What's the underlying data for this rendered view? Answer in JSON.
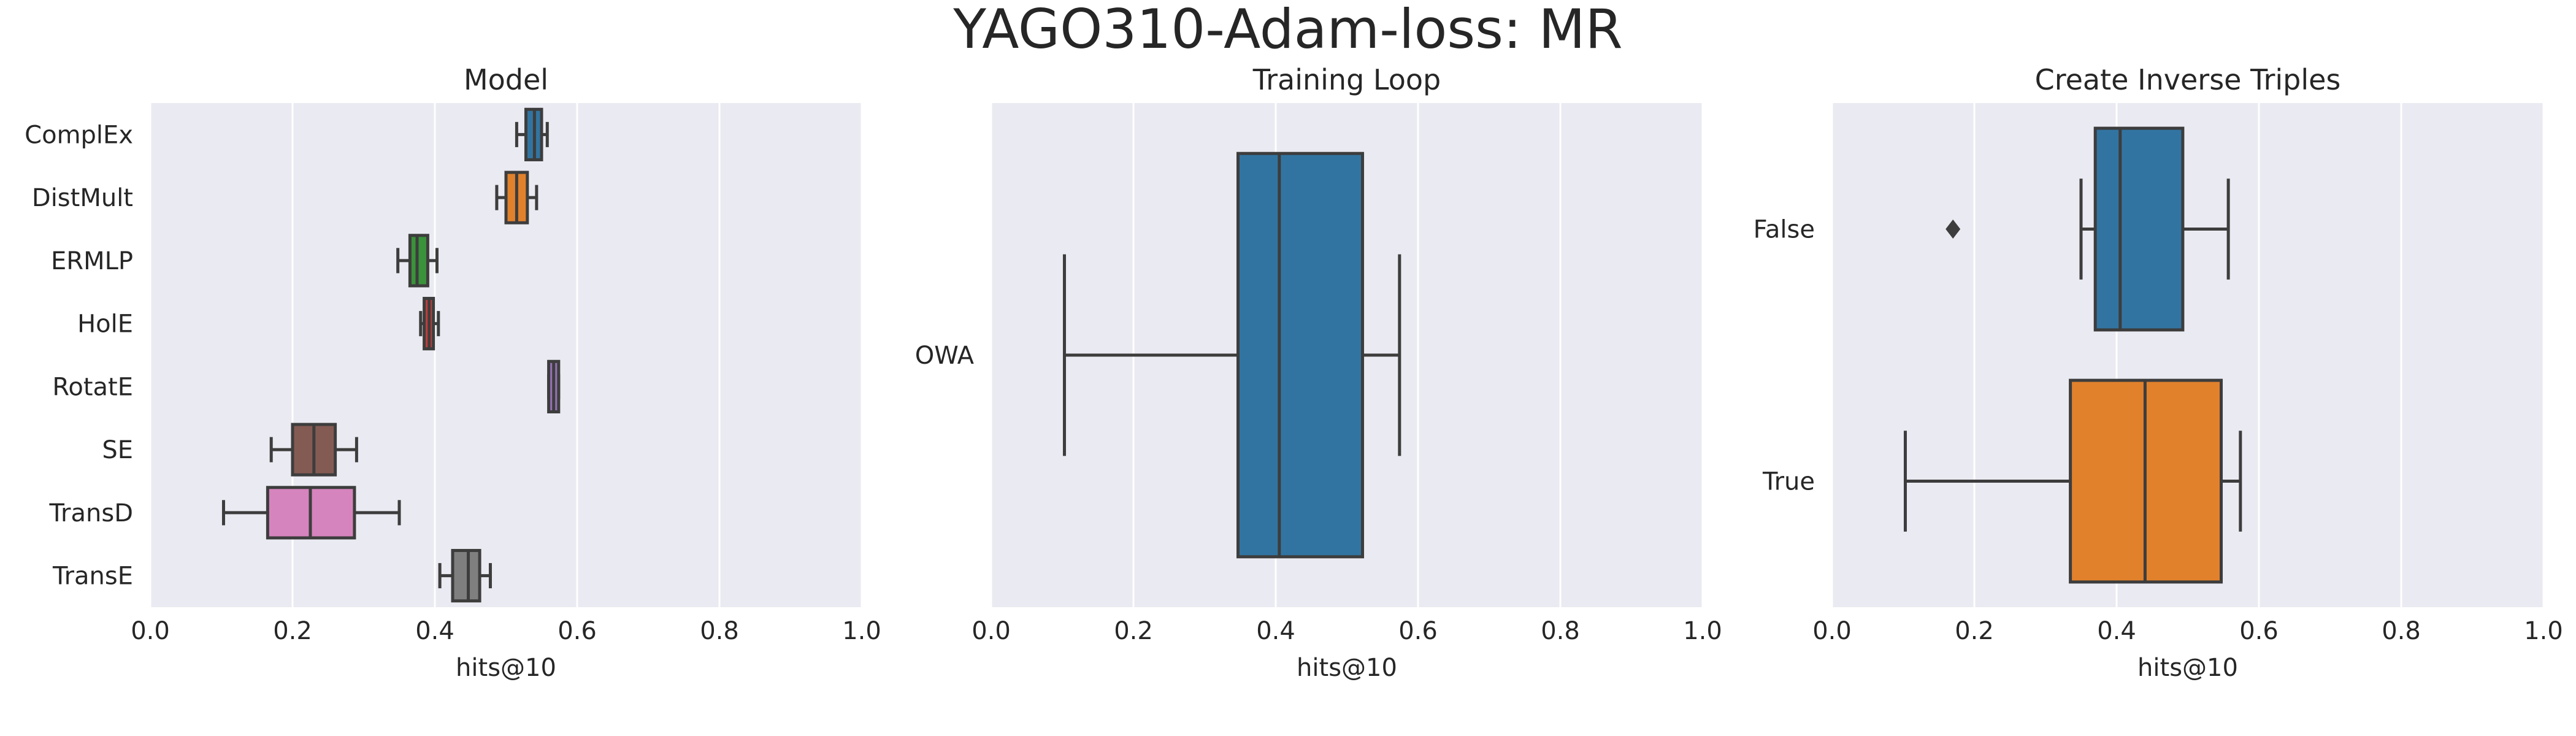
{
  "figure": {
    "title": "YAGO310-Adam-loss: MR"
  },
  "chart_data": [
    {
      "type": "box",
      "orientation": "horizontal",
      "title": "Model",
      "xlabel": "hits@10",
      "ylabel": "",
      "xlim": [
        0.0,
        1.0
      ],
      "xticks": [
        "0.0",
        "0.2",
        "0.4",
        "0.6",
        "0.8",
        "1.0"
      ],
      "grid": true,
      "categories": [
        "ComplEx",
        "DistMult",
        "ERMLP",
        "HolE",
        "RotatE",
        "SE",
        "TransD",
        "TransE"
      ],
      "boxes": [
        {
          "category": "ComplEx",
          "whislo": 0.515,
          "q1": 0.528,
          "median": 0.54,
          "q3": 0.55,
          "whishi": 0.558,
          "fliers": [],
          "color": "#3274a1"
        },
        {
          "category": "DistMult",
          "whislo": 0.487,
          "q1": 0.5,
          "median": 0.515,
          "q3": 0.53,
          "whishi": 0.543,
          "fliers": [],
          "color": "#e1812c"
        },
        {
          "category": "ERMLP",
          "whislo": 0.348,
          "q1": 0.365,
          "median": 0.375,
          "q3": 0.39,
          "whishi": 0.403,
          "fliers": [],
          "color": "#3a923a"
        },
        {
          "category": "HolE",
          "whislo": 0.38,
          "q1": 0.385,
          "median": 0.392,
          "q3": 0.398,
          "whishi": 0.405,
          "fliers": [],
          "color": "#c03d3e"
        },
        {
          "category": "RotatE",
          "whislo": 0.56,
          "q1": 0.56,
          "median": 0.567,
          "q3": 0.574,
          "whishi": 0.574,
          "fliers": [],
          "color": "#9372b2"
        },
        {
          "category": "SE",
          "whislo": 0.17,
          "q1": 0.2,
          "median": 0.23,
          "q3": 0.26,
          "whishi": 0.29,
          "fliers": [],
          "color": "#845b53"
        },
        {
          "category": "TransD",
          "whislo": 0.103,
          "q1": 0.165,
          "median": 0.225,
          "q3": 0.287,
          "whishi": 0.35,
          "fliers": [],
          "color": "#d684bd"
        },
        {
          "category": "TransE",
          "whislo": 0.407,
          "q1": 0.425,
          "median": 0.447,
          "q3": 0.463,
          "whishi": 0.478,
          "fliers": [],
          "color": "#7f7f7f"
        }
      ]
    },
    {
      "type": "box",
      "orientation": "horizontal",
      "title": "Training Loop",
      "xlabel": "hits@10",
      "ylabel": "",
      "xlim": [
        0.0,
        1.0
      ],
      "xticks": [
        "0.0",
        "0.2",
        "0.4",
        "0.6",
        "0.8",
        "1.0"
      ],
      "grid": true,
      "categories": [
        "OWA"
      ],
      "boxes": [
        {
          "category": "OWA",
          "whislo": 0.103,
          "q1": 0.347,
          "median": 0.405,
          "q3": 0.522,
          "whishi": 0.574,
          "fliers": [],
          "color": "#3274a1"
        }
      ]
    },
    {
      "type": "box",
      "orientation": "horizontal",
      "title": "Create Inverse Triples",
      "xlabel": "hits@10",
      "ylabel": "",
      "xlim": [
        0.0,
        1.0
      ],
      "xticks": [
        "0.0",
        "0.2",
        "0.4",
        "0.6",
        "0.8",
        "1.0"
      ],
      "grid": true,
      "categories": [
        "False",
        "True"
      ],
      "boxes": [
        {
          "category": "False",
          "whislo": 0.35,
          "q1": 0.37,
          "median": 0.405,
          "q3": 0.493,
          "whishi": 0.557,
          "fliers": [
            0.17
          ],
          "color": "#3274a1"
        },
        {
          "category": "True",
          "whislo": 0.103,
          "q1": 0.335,
          "median": 0.44,
          "q3": 0.547,
          "whishi": 0.574,
          "fliers": [],
          "color": "#e1812c"
        }
      ]
    }
  ]
}
